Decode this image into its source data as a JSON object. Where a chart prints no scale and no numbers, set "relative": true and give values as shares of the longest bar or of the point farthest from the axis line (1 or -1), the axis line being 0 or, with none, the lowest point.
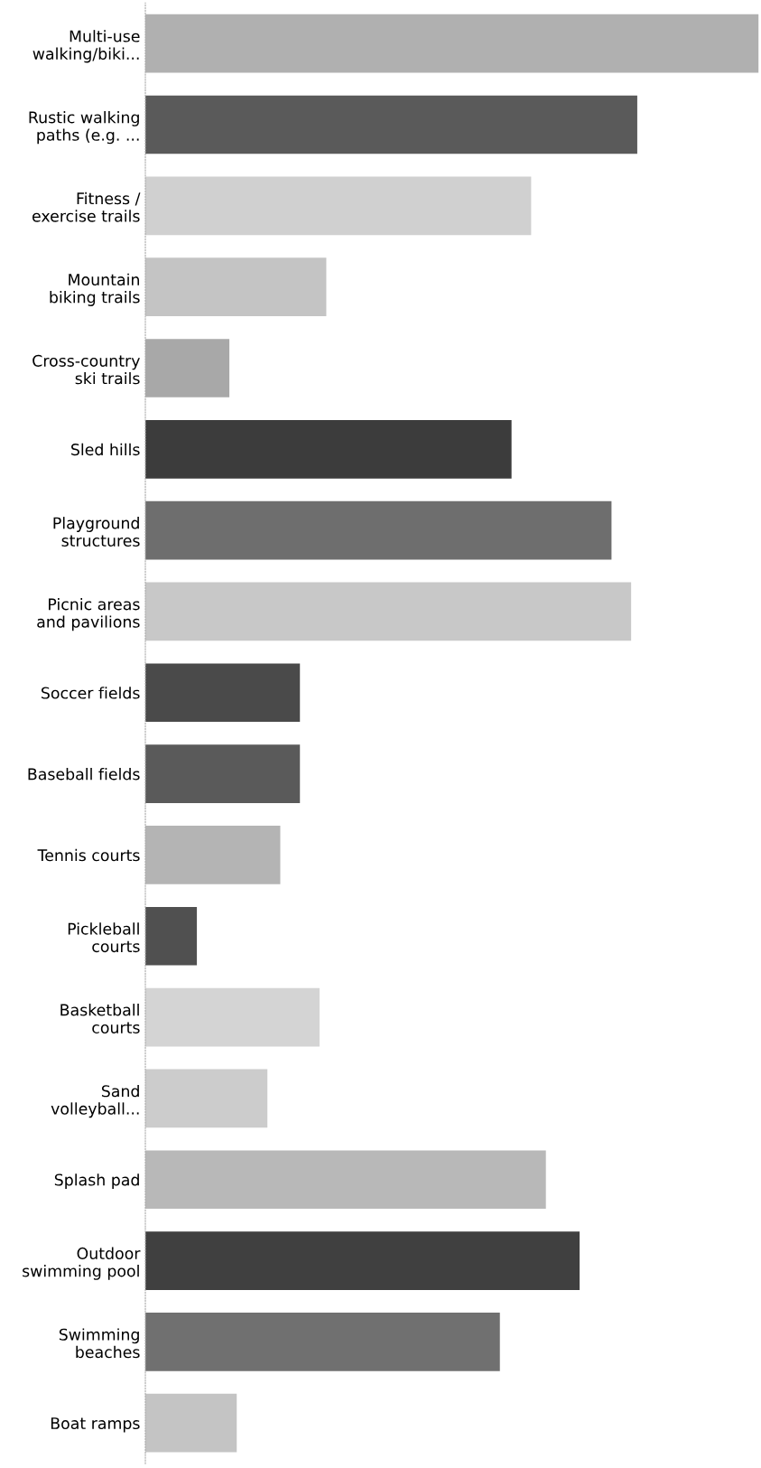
{
  "chart_data": {
    "type": "bar",
    "orientation": "horizontal",
    "relative": true,
    "categories": [
      "Multi-use\nwalking/biki...",
      "Rustic walking\npaths (e.g. ...",
      "Fitness /\nexercise trails",
      "Mountain\nbiking trails",
      "Cross-country\nski trails",
      "Sled hills",
      "Playground\nstructures",
      "Picnic areas\nand pavilions",
      "Soccer fields",
      "Baseball fields",
      "Tennis courts",
      "Pickleball\ncourts",
      "Basketball\ncourts",
      "Sand\nvolleyball...",
      "Splash pad",
      "Outdoor\nswimming pool",
      "Swimming\nbeaches",
      "Boat ramps"
    ],
    "values": [
      1.0,
      0.802,
      0.629,
      0.295,
      0.137,
      0.597,
      0.76,
      0.792,
      0.252,
      0.252,
      0.22,
      0.084,
      0.284,
      0.199,
      0.653,
      0.708,
      0.578,
      0.149
    ],
    "colors": [
      "#b0b0b0",
      "#5a5a5a",
      "#d0d0d0",
      "#c4c4c4",
      "#a8a8a8",
      "#3c3c3c",
      "#6e6e6e",
      "#c8c8c8",
      "#4a4a4a",
      "#5a5a5a",
      "#b4b4b4",
      "#505050",
      "#d4d4d4",
      "#cccccc",
      "#b8b8b8",
      "#404040",
      "#707070",
      "#c4c4c4"
    ],
    "grid": false
  }
}
